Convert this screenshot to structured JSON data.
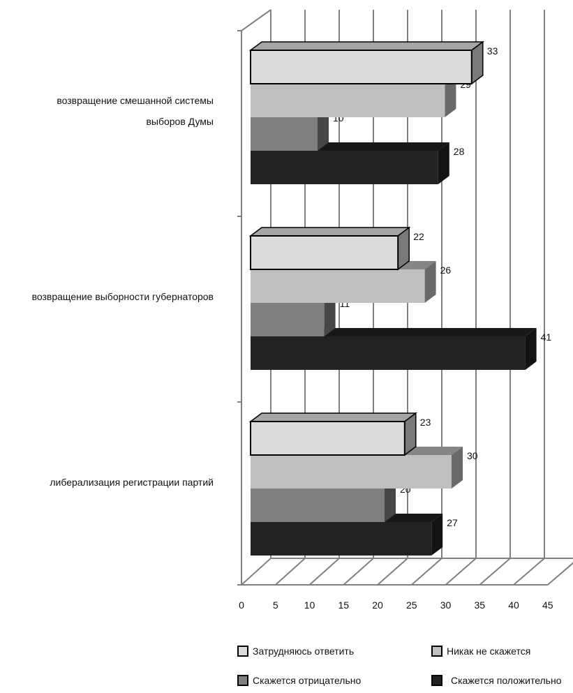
{
  "chart_data": {
    "type": "bar",
    "orientation": "horizontal",
    "style": "3d",
    "categories": [
      [
        "возвращение смешанной системы",
        "выборов Думы"
      ],
      [
        "возвращение выборности губернаторов"
      ],
      [
        "либерализация регистрации партий"
      ]
    ],
    "series": [
      {
        "name": "Затрудняюсь ответить",
        "color": "#dcdcdc",
        "values": [
          33,
          22,
          23
        ]
      },
      {
        "name": "Никак не скажется",
        "color": "#bfbfbf",
        "values": [
          29,
          26,
          30
        ]
      },
      {
        "name": "Скажется отрицательно",
        "color": "#7f7f7f",
        "values": [
          10,
          11,
          20
        ]
      },
      {
        "name": "Скажется положительно",
        "color": "#222222",
        "values": [
          28,
          41,
          27
        ]
      }
    ],
    "xlim": [
      0,
      45
    ],
    "xticks": [
      0,
      5,
      10,
      15,
      20,
      25,
      30,
      35,
      40,
      45
    ],
    "grid": true,
    "legend_position": "bottom"
  }
}
